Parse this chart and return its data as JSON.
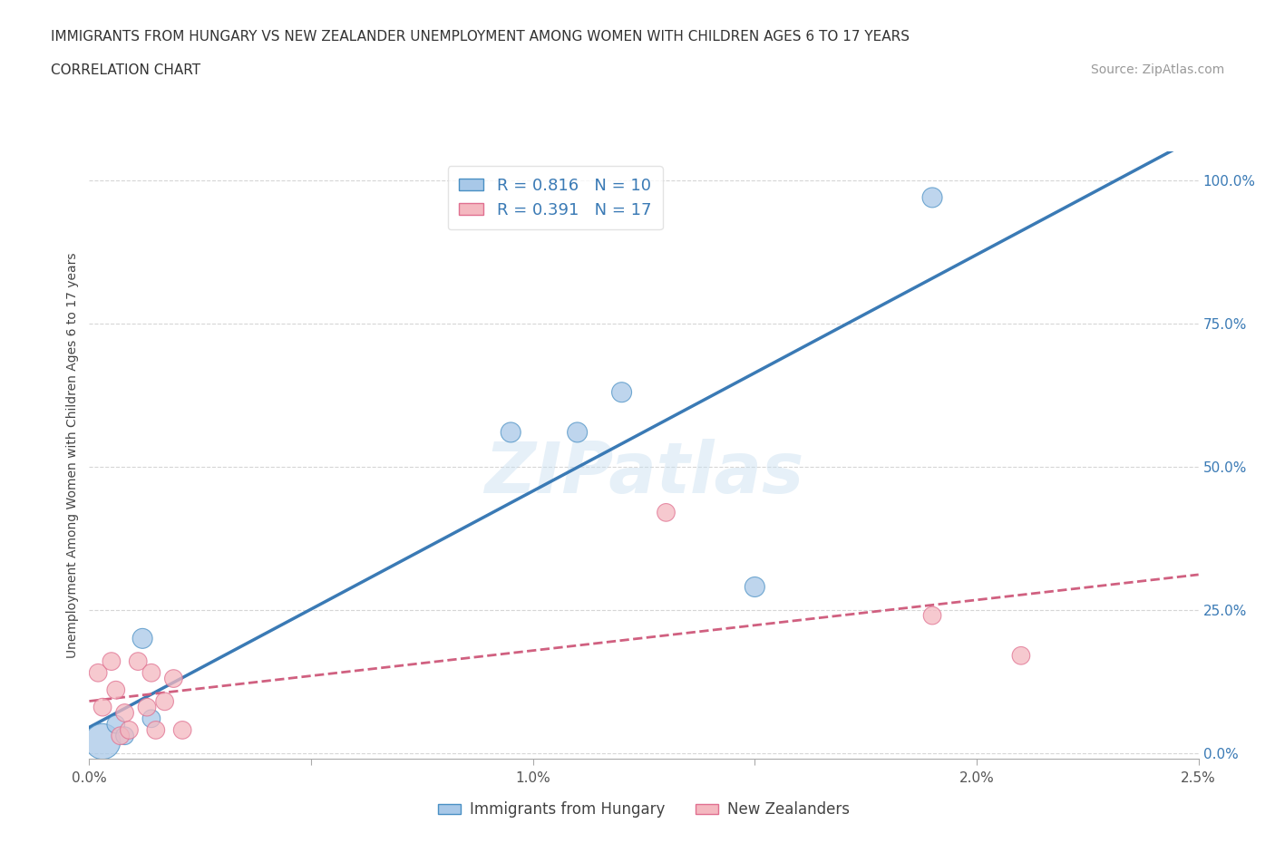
{
  "title": "IMMIGRANTS FROM HUNGARY VS NEW ZEALANDER UNEMPLOYMENT AMONG WOMEN WITH CHILDREN AGES 6 TO 17 YEARS",
  "subtitle": "CORRELATION CHART",
  "source": "Source: ZipAtlas.com",
  "ylabel": "Unemployment Among Women with Children Ages 6 to 17 years",
  "xlim": [
    0.0,
    0.025
  ],
  "ylim": [
    -0.01,
    1.05
  ],
  "right_yticks": [
    0.0,
    0.25,
    0.5,
    0.75,
    1.0
  ],
  "right_yticklabels": [
    "0.0%",
    "25.0%",
    "50.0%",
    "75.0%",
    "100.0%"
  ],
  "xticks": [
    0.0,
    0.005,
    0.01,
    0.015,
    0.02,
    0.025
  ],
  "xticklabels": [
    "0.0%",
    "",
    "1.0%",
    "",
    "2.0%",
    "2.5%"
  ],
  "blue_color": "#a8c8e8",
  "pink_color": "#f4b8c0",
  "blue_edge_color": "#4a90c4",
  "pink_edge_color": "#e07090",
  "blue_line_color": "#3a7ab5",
  "pink_line_color": "#d06080",
  "R_blue": 0.816,
  "N_blue": 10,
  "R_pink": 0.391,
  "N_pink": 17,
  "blue_x": [
    0.0003,
    0.0006,
    0.0008,
    0.0012,
    0.0014,
    0.0095,
    0.011,
    0.012,
    0.015,
    0.019
  ],
  "blue_y": [
    0.02,
    0.05,
    0.03,
    0.2,
    0.06,
    0.56,
    0.56,
    0.63,
    0.29,
    0.97
  ],
  "blue_size_vals": [
    800,
    200,
    200,
    250,
    200,
    250,
    250,
    250,
    250,
    250
  ],
  "pink_x": [
    0.0002,
    0.0003,
    0.0005,
    0.0006,
    0.0007,
    0.0008,
    0.0009,
    0.0011,
    0.0013,
    0.0014,
    0.0015,
    0.0017,
    0.0019,
    0.0021,
    0.013,
    0.019,
    0.021
  ],
  "pink_y": [
    0.14,
    0.08,
    0.16,
    0.11,
    0.03,
    0.07,
    0.04,
    0.16,
    0.08,
    0.14,
    0.04,
    0.09,
    0.13,
    0.04,
    0.42,
    0.24,
    0.17
  ],
  "pink_size_vals": [
    200,
    200,
    200,
    200,
    200,
    200,
    200,
    200,
    200,
    200,
    200,
    200,
    200,
    200,
    200,
    200,
    200
  ],
  "watermark": "ZIPatlas",
  "legend_x_blue": "Immigrants from Hungary",
  "legend_x_pink": "New Zealanders",
  "background_color": "#ffffff",
  "grid_color": "#cccccc",
  "title_fontsize": 11,
  "subtitle_fontsize": 11,
  "source_fontsize": 10,
  "ylabel_fontsize": 10,
  "tick_fontsize": 11
}
